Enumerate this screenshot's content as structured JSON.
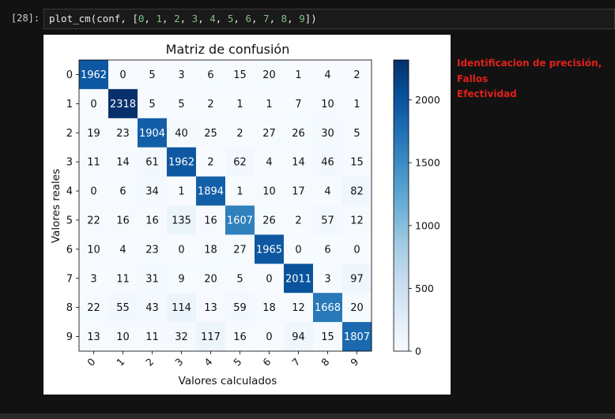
{
  "cell": {
    "prompt": "[28]:",
    "code_func": "plot_cm(conf, [",
    "code_args": [
      "0",
      "1",
      "2",
      "3",
      "4",
      "5",
      "6",
      "7",
      "8",
      "9"
    ],
    "code_close": "])"
  },
  "annotation": {
    "lines": [
      "Identificacion de precisión,",
      "Fallos",
      "Efectividad"
    ],
    "color": "#e0201a"
  },
  "chart_data": {
    "type": "heatmap",
    "title": "Matriz de confusión",
    "xlabel": "Valores calculados",
    "ylabel": "Valores reales",
    "x_ticks": [
      "0",
      "1",
      "2",
      "3",
      "4",
      "5",
      "6",
      "7",
      "8",
      "9"
    ],
    "y_ticks": [
      "0",
      "1",
      "2",
      "3",
      "4",
      "5",
      "6",
      "7",
      "8",
      "9"
    ],
    "matrix": [
      [
        1962,
        0,
        5,
        3,
        6,
        15,
        20,
        1,
        4,
        2
      ],
      [
        0,
        2318,
        5,
        5,
        2,
        1,
        1,
        7,
        10,
        1
      ],
      [
        19,
        23,
        1904,
        40,
        25,
        2,
        27,
        26,
        30,
        5
      ],
      [
        11,
        14,
        61,
        1962,
        2,
        62,
        4,
        14,
        46,
        15
      ],
      [
        0,
        6,
        34,
        1,
        1894,
        1,
        10,
        17,
        4,
        82
      ],
      [
        22,
        16,
        16,
        135,
        16,
        1607,
        26,
        2,
        57,
        12
      ],
      [
        10,
        4,
        23,
        0,
        18,
        27,
        1965,
        0,
        6,
        0
      ],
      [
        3,
        11,
        31,
        9,
        20,
        5,
        0,
        2011,
        3,
        97
      ],
      [
        22,
        55,
        43,
        114,
        13,
        59,
        18,
        12,
        1668,
        20
      ],
      [
        13,
        10,
        11,
        32,
        117,
        16,
        0,
        94,
        15,
        1807
      ]
    ],
    "colormap": "Blues",
    "vmin": 0,
    "vmax": 2318,
    "colorbar_ticks": [
      0,
      500,
      1000,
      1500,
      2000
    ],
    "grid": false
  }
}
